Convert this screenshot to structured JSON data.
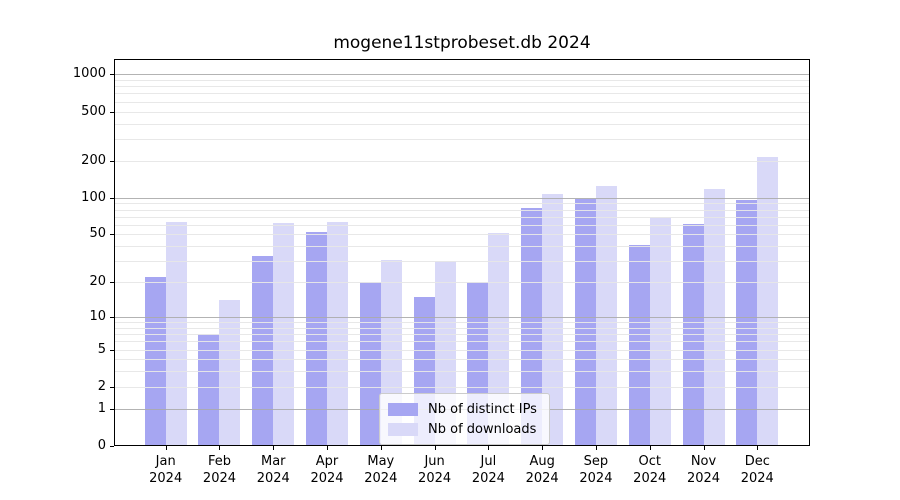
{
  "figure": {
    "title": "mogene11stprobeset.db 2024"
  },
  "chart_data": {
    "type": "bar",
    "title": "mogene11stprobeset.db 2024",
    "categories": [
      "Jan",
      "Feb",
      "Mar",
      "Apr",
      "May",
      "Jun",
      "Jul",
      "Aug",
      "Sep",
      "Oct",
      "Nov",
      "Dec"
    ],
    "year_label": "2024",
    "series": [
      {
        "name": "Nb of distinct IPs",
        "color": "#a6a6f2",
        "values": [
          22,
          7,
          33,
          52,
          20,
          15,
          20,
          82,
          98,
          41,
          61,
          96
        ]
      },
      {
        "name": "Nb of downloads",
        "color": "#d9d9f8",
        "values": [
          63,
          14,
          62,
          63,
          31,
          30,
          51,
          108,
          125,
          70,
          118,
          215
        ]
      }
    ],
    "yscale": "log1p",
    "ylim": [
      0,
      1300
    ],
    "yticks": [
      1000,
      500,
      200,
      100,
      50,
      20,
      10,
      5,
      2,
      1,
      0
    ],
    "grid": {
      "major_values": [
        1,
        10,
        100,
        1000
      ],
      "minor_multiples": [
        2,
        3,
        4,
        5,
        6,
        7,
        8,
        9
      ],
      "minor_decades": [
        1,
        10,
        100
      ],
      "major_color": "#ababab",
      "minor_color": "#e7e7e7"
    },
    "legend_position": "lower center",
    "xlabel": "",
    "ylabel": ""
  }
}
